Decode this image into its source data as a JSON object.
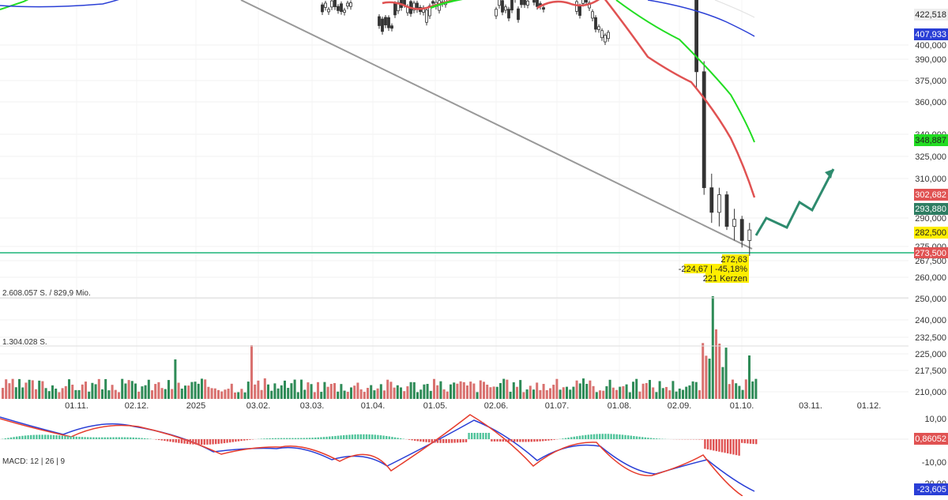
{
  "chart_data": [
    {
      "type": "candlestick",
      "panel": "price",
      "y_ticks": [
        "400,000",
        "390,000",
        "375,000",
        "360,000",
        "340,000",
        "325,000",
        "310,000",
        "290,000",
        "275,000",
        "267,500",
        "260,000",
        "250,000",
        "240,000",
        "232,500",
        "225,000",
        "217,500",
        "210,000"
      ],
      "y_range": [
        205000,
        425000
      ],
      "overlays": [
        {
          "color": "#e05252",
          "label": "302,682",
          "value": 302682
        },
        {
          "color": "#22dd22",
          "label": "348,887",
          "value": 348887
        },
        {
          "color": "#2a3fd6",
          "label": "407,933",
          "value": 407933
        },
        {
          "color": "#eeeeee",
          "label": "422,518",
          "value": 422518
        }
      ],
      "price_tags": [
        {
          "label": "293,880",
          "value": 293880,
          "color": "#2e7d62"
        },
        {
          "label": "282,500",
          "value": 282500,
          "color": "#ffee00"
        },
        {
          "label": "273,500",
          "value": 273500,
          "color": "#e05252"
        }
      ],
      "horizontal_line": {
        "value": 273500,
        "color": "#55c79a"
      },
      "annotation": {
        "lines": [
          "272,63",
          "-224,67 | -45,18%",
          "221 Kerzen"
        ],
        "color": "#ffee00"
      },
      "candles_late": [
        [
          380,
          383,
          372,
          376
        ],
        [
          376,
          379,
          366,
          370
        ],
        [
          370,
          378,
          368,
          375
        ],
        [
          375,
          388,
          373,
          386
        ],
        [
          386,
          387,
          376,
          378
        ],
        [
          378,
          381,
          369,
          372
        ],
        [
          372,
          376,
          366,
          373
        ],
        [
          373,
          376,
          362,
          365
        ],
        [
          365,
          374,
          363,
          372
        ],
        [
          372,
          377,
          370,
          375
        ],
        [
          375,
          376,
          360,
          362
        ],
        [
          362,
          352,
          320,
          325
        ],
        [
          325,
          328,
          290,
          292
        ],
        [
          292,
          296,
          282,
          285
        ],
        [
          285,
          292,
          281,
          290
        ],
        [
          290,
          291,
          280,
          281
        ],
        [
          281,
          286,
          277,
          283
        ],
        [
          283,
          284,
          275,
          277
        ],
        [
          277,
          282,
          272.63,
          280
        ]
      ]
    },
    {
      "type": "bar",
      "panel": "volume",
      "labels": [
        "2.608.057 S. / 829,9 Mio.",
        "1.304.028 S."
      ],
      "colors": {
        "up": "#2e8b57",
        "down": "#d9716f"
      }
    },
    {
      "type": "line",
      "panel": "macd",
      "label": "MACD: 12 | 26 | 9",
      "y_ticks": [
        "10,00",
        "-10,00",
        "-20,00"
      ],
      "tags": [
        {
          "label": "0,86052",
          "color": "#e05252"
        },
        {
          "label": "-23,605",
          "color": "#2a3fd6"
        }
      ]
    }
  ],
  "x_axis": {
    "labels": [
      "01.11.",
      "02.12.",
      "2025",
      "03.02.",
      "03.03.",
      "01.04.",
      "01.05.",
      "02.06.",
      "01.07.",
      "01.08.",
      "02.09.",
      "01.10.",
      "03.11.",
      "01.12."
    ]
  }
}
